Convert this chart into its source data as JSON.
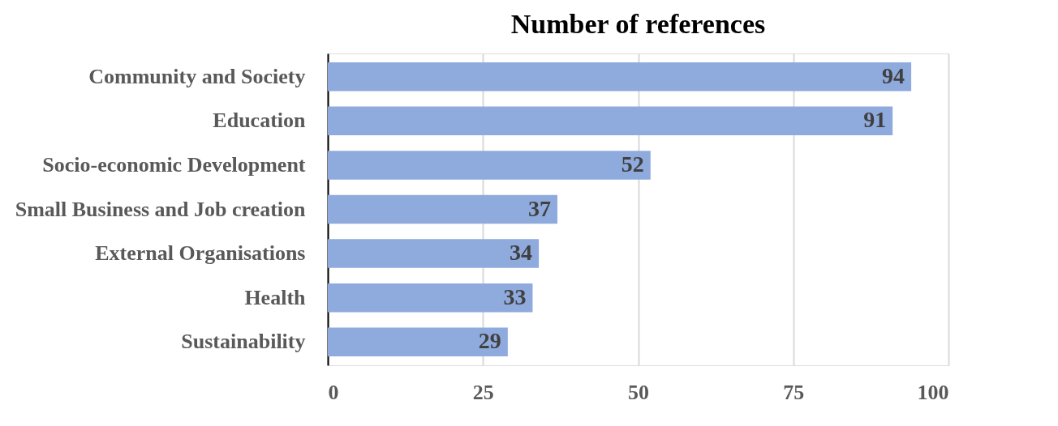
{
  "chart_data": {
    "type": "bar",
    "orientation": "horizontal",
    "title": "Number of references",
    "categories": [
      "Community and Society",
      "Education",
      "Socio-economic Development",
      "Small Business and Job creation",
      "External Organisations",
      "Health",
      "Sustainability"
    ],
    "values": [
      94,
      91,
      52,
      37,
      34,
      33,
      29
    ],
    "color": "#8faadc",
    "xlim": [
      0,
      100
    ],
    "xticks": [
      0,
      25,
      50,
      75,
      100
    ],
    "grid": "x",
    "data_labels": true
  }
}
